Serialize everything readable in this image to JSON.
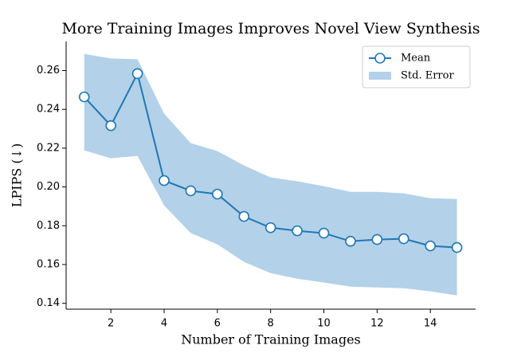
{
  "chart_data": {
    "type": "line",
    "title": "More Training Images Improves Novel View Synthesis",
    "x_label": "Number of Training Images",
    "y_label": "LPIPS (↓)",
    "x": [
      1,
      2,
      3,
      4,
      5,
      6,
      7,
      8,
      9,
      10,
      11,
      12,
      13,
      14,
      15
    ],
    "series": [
      {
        "name": "Mean",
        "color": "#1f77b4",
        "values": [
          0.2464,
          0.2316,
          0.2584,
          0.2033,
          0.198,
          0.1963,
          0.1848,
          0.179,
          0.1774,
          0.1762,
          0.172,
          0.1729,
          0.1733,
          0.1696,
          0.1688
        ]
      }
    ],
    "band": {
      "name": "Std. Error",
      "color": "#b3d1e8",
      "upper": [
        0.2686,
        0.2662,
        0.2658,
        0.2378,
        0.2226,
        0.2185,
        0.2111,
        0.2049,
        0.2029,
        0.2004,
        0.1975,
        0.1975,
        0.1967,
        0.1942,
        0.1938
      ],
      "lower": [
        0.2189,
        0.2148,
        0.216,
        0.1905,
        0.1762,
        0.1704,
        0.1614,
        0.1556,
        0.1527,
        0.1507,
        0.1486,
        0.1482,
        0.1478,
        0.1462,
        0.1441
      ]
    },
    "xlim": [
      0.32,
      15.7
    ],
    "ylim": [
      0.137,
      0.275
    ],
    "xticks": [
      2,
      4,
      6,
      8,
      10,
      12,
      14
    ],
    "yticks": [
      0.14,
      0.16,
      0.18,
      {
        "value": 0.2,
        "label": "0.20"
      },
      0.22,
      0.24,
      0.26
    ],
    "legend": "upper right",
    "grid": false
  }
}
